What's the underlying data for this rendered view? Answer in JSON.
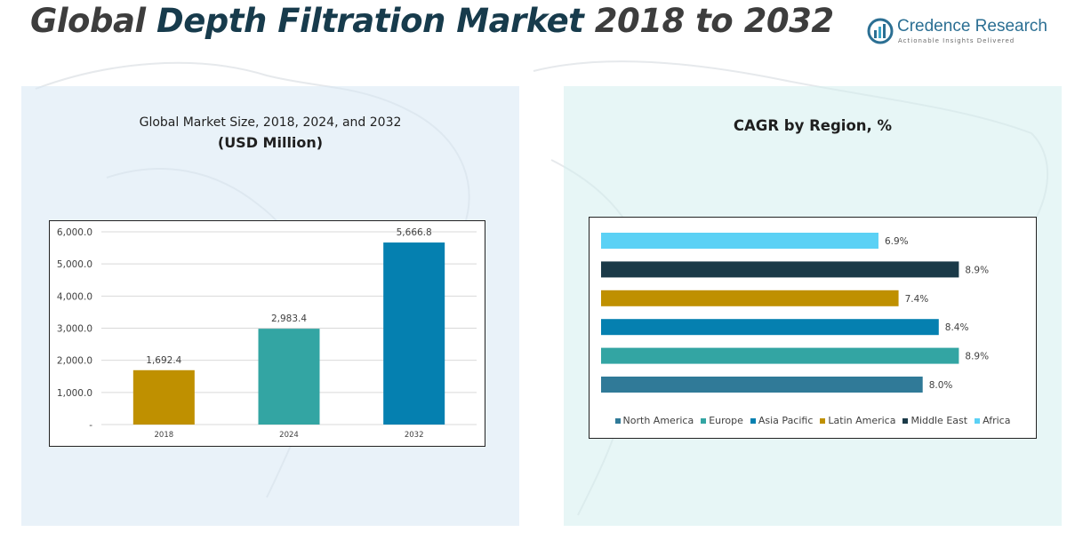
{
  "page": {
    "title_lead": "Global",
    "title_accent": "Depth Filtration Market",
    "title_tail": "2018 to 2032"
  },
  "logo": {
    "name": "Credence Research",
    "tagline": "Actionable Insights Delivered"
  },
  "colors": {
    "title_dark": "#3d3d3d",
    "title_accent": "#173b4c",
    "left_panel_bg": "#dfecf6",
    "right_panel_bg": "#dcf1f1"
  },
  "left_panel": {
    "title_line1": "Global Market Size, 2018, 2024, and 2032",
    "title_line2": "(USD Million)"
  },
  "right_panel": {
    "title": "CAGR by Region, %"
  },
  "chart_data": [
    {
      "type": "bar",
      "title": "Global Market Size, 2018, 2024, and 2032 (USD Million)",
      "categories": [
        "2018",
        "2024",
        "2032"
      ],
      "values": [
        1692.4,
        2983.4,
        5666.8
      ],
      "value_labels": [
        "1,692.4",
        "2,983.4",
        "5,666.8"
      ],
      "colors": [
        "#bf9000",
        "#33a5a3",
        "#0580b0"
      ],
      "ylim": [
        0,
        6000
      ],
      "yticks": [
        0,
        1000,
        2000,
        3000,
        4000,
        5000,
        6000
      ],
      "ytick_labels": [
        "-",
        "1,000.0",
        "2,000.0",
        "3,000.0",
        "4,000.0",
        "5,000.0",
        "6,000.0"
      ],
      "grid": true
    },
    {
      "type": "bar",
      "orientation": "horizontal",
      "title": "CAGR by Region, %",
      "series": [
        {
          "name": "North America",
          "value": 8.0,
          "label": "8.0%",
          "color": "#307a98"
        },
        {
          "name": "Europe",
          "value": 8.9,
          "label": "8.9%",
          "color": "#33a5a3"
        },
        {
          "name": "Asia Pacific",
          "value": 8.4,
          "label": "8.4%",
          "color": "#0580b0"
        },
        {
          "name": "Latin America",
          "value": 7.4,
          "label": "7.4%",
          "color": "#bf9000"
        },
        {
          "name": "Middle East",
          "value": 8.9,
          "label": "8.9%",
          "color": "#1b3a48"
        },
        {
          "name": "Africa",
          "value": 6.9,
          "label": "6.9%",
          "color": "#5bd1f5"
        }
      ],
      "xlim": [
        0,
        9.4
      ],
      "legend": "bottom",
      "grid": false
    }
  ]
}
